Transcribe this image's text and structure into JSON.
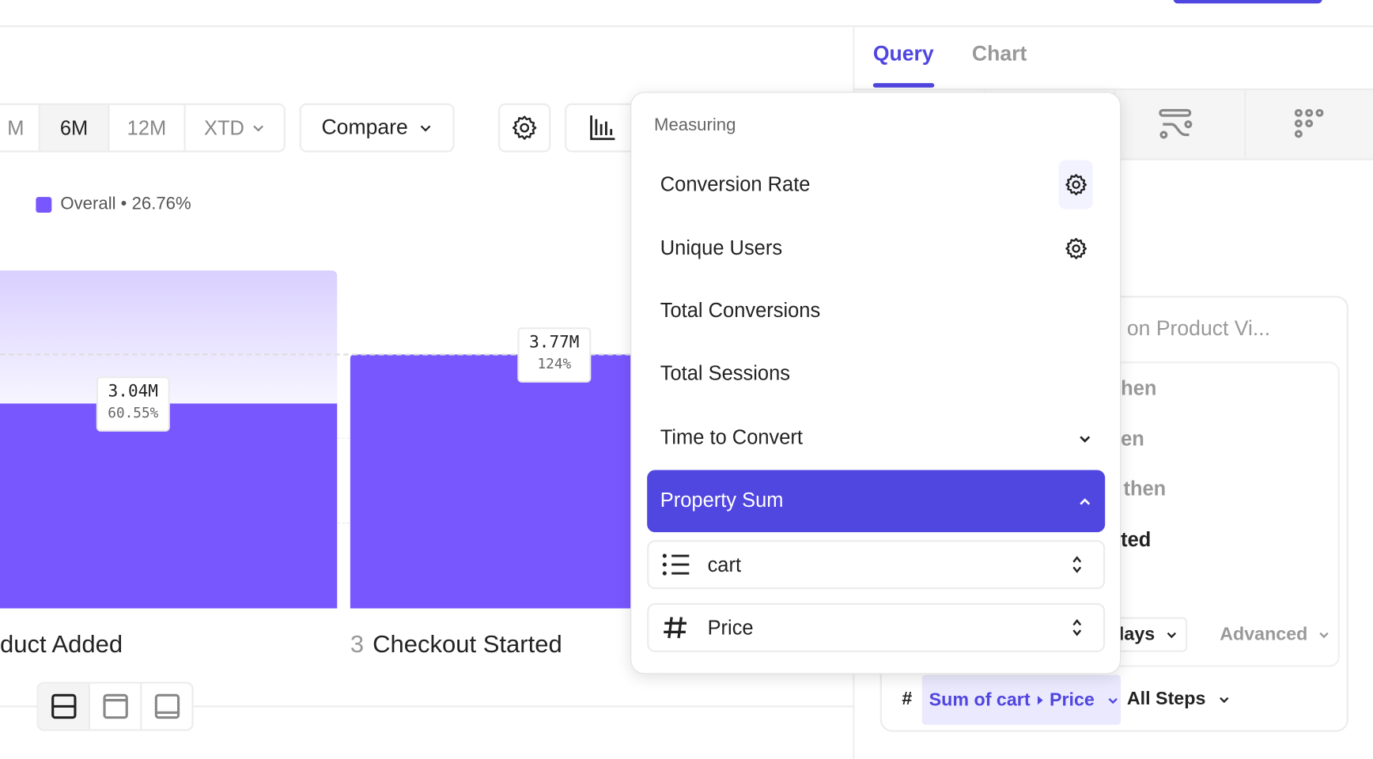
{
  "toolbar": {
    "ranges": [
      {
        "label": "M",
        "active": false
      },
      {
        "label": "6M",
        "active": true
      },
      {
        "label": "12M",
        "active": false
      },
      {
        "label": "XTD",
        "active": false
      }
    ],
    "compare_label": "Compare"
  },
  "legend": {
    "label": "Overall • 26.76%",
    "color": "#7857ff"
  },
  "chart_data": {
    "type": "bar",
    "categories": [
      "duct Added",
      "Checkout Started"
    ],
    "step_numbers": [
      "",
      "3"
    ],
    "values_label": [
      "3.04M",
      "3.77M"
    ],
    "percent_label": [
      "60.55%",
      "124%"
    ],
    "series": [
      {
        "name": "Overall",
        "values": [
          3.04,
          3.77
        ]
      }
    ],
    "bar_color": "#7857ff",
    "ghost_color": "#d9d0ff"
  },
  "right_panel": {
    "tabs": [
      {
        "label": "Query",
        "active": true
      },
      {
        "label": "Chart",
        "active": false
      }
    ],
    "accent": "#5046e0",
    "card": {
      "title_partial": "on Product Vi...",
      "steps_partial": [
        "hen",
        "en",
        "then",
        "ted"
      ],
      "window_partial": "lays",
      "advanced_label": "Advanced",
      "hash": "#",
      "measure_label": "Sum of cart",
      "measure_prop": "Price",
      "scope_label": "All Steps"
    }
  },
  "popup": {
    "header": "Measuring",
    "items": [
      {
        "label": "Conversion Rate",
        "icon": "gear-icon"
      },
      {
        "label": "Unique Users",
        "icon": "gear-icon"
      },
      {
        "label": "Total Conversions"
      },
      {
        "label": "Total Sessions"
      },
      {
        "label": "Time to Convert",
        "icon": "chevron-down-icon"
      },
      {
        "label": "Property Sum",
        "icon": "chevron-up-icon",
        "selected": true
      }
    ],
    "list_select": "cart",
    "property_select": "Price"
  }
}
